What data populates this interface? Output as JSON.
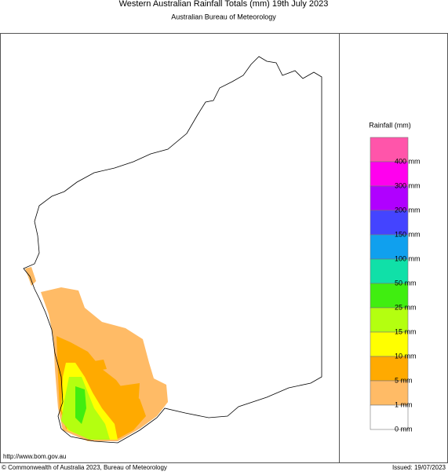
{
  "header": {
    "title": "Western Australian Rainfall Totals (mm) 19th July 2023",
    "subtitle": "Australian Bureau of Meteorology"
  },
  "legend": {
    "title": "Rainfall (mm)",
    "colors": [
      "#ff55aa",
      "#ff00ee",
      "#b000ff",
      "#4444ff",
      "#10a0ee",
      "#10e0a8",
      "#40ee10",
      "#b4ff10",
      "#ffff00",
      "#ffaa00",
      "#ffbb66",
      "#ffffff"
    ],
    "labels": [
      "400 mm",
      "300 mm",
      "200 mm",
      "150 mm",
      "100 mm",
      "50 mm",
      "25 mm",
      "15 mm",
      "10 mm",
      "5 mm",
      "1 mm",
      "0 mm"
    ]
  },
  "footer": {
    "url": "http://www.bom.gov.au",
    "copyright": "© Commonwealth of Australia 2023, Bureau of Meteorology",
    "issued": "Issued: 19/07/2023"
  }
}
